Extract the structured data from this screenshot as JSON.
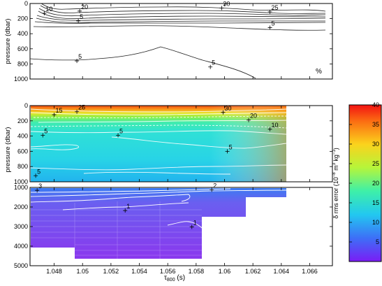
{
  "chart_data": [
    {
      "type": "contour",
      "panel": "top",
      "ylabel": "pressure (dbar)",
      "unit_label": "%",
      "ylim": [
        1000,
        0
      ],
      "xlim": [
        1.0463,
        1.0676
      ],
      "yticks": [
        "0",
        "200",
        "400",
        "600",
        "800",
        "1000"
      ],
      "contour_labels": [
        {
          "text": "10",
          "x": 1.0473,
          "y": 130
        },
        {
          "text": "20",
          "x": 1.0498,
          "y": 100
        },
        {
          "text": "5",
          "x": 1.0497,
          "y": 230
        },
        {
          "text": "30",
          "x": 1.0598,
          "y": 60
        },
        {
          "text": "25",
          "x": 1.0632,
          "y": 110
        },
        {
          "text": "5",
          "x": 1.0632,
          "y": 320
        },
        {
          "text": "5",
          "x": 1.0496,
          "y": 760
        },
        {
          "text": "5",
          "x": 1.059,
          "y": 840
        }
      ]
    },
    {
      "type": "heatmap",
      "panel": "middle",
      "ylabel": "pressure (dbar)",
      "ylim": [
        1000,
        0
      ],
      "yticks": [
        "0",
        "200",
        "400",
        "600",
        "800",
        "1000"
      ],
      "contour_labels": [
        {
          "text": "15",
          "x": 1.048,
          "y": 120
        },
        {
          "text": "25",
          "x": 1.0496,
          "y": 80
        },
        {
          "text": "5",
          "x": 1.0472,
          "y": 390
        },
        {
          "text": "5",
          "x": 1.0525,
          "y": 390
        },
        {
          "text": "30",
          "x": 1.0599,
          "y": 90
        },
        {
          "text": "20",
          "x": 1.0617,
          "y": 190
        },
        {
          "text": "10",
          "x": 1.0632,
          "y": 310
        },
        {
          "text": "5",
          "x": 1.0602,
          "y": 600
        },
        {
          "text": "5",
          "x": 1.0467,
          "y": 920
        }
      ]
    },
    {
      "type": "heatmap",
      "panel": "bottom",
      "xlabel_main": "τ",
      "xlabel_sub": "800",
      "xlabel_unit": " (s)",
      "xlim": [
        1.0463,
        1.0676
      ],
      "ylim": [
        5000,
        1000
      ],
      "yticks": [
        "1000",
        "2000",
        "3000",
        "4000",
        "5000"
      ],
      "xticks": [
        "1.048",
        "1.05",
        "1.052",
        "1.054",
        "1.056",
        "1.058",
        "1.06",
        "1.062",
        "1.064",
        "1.066"
      ],
      "contour_labels": [
        {
          "text": "3",
          "x": 1.0468,
          "y": 1150
        },
        {
          "text": "2",
          "x": 1.0591,
          "y": 1120
        },
        {
          "text": "1",
          "x": 1.053,
          "y": 2180
        },
        {
          "text": "1",
          "x": 1.0577,
          "y": 3020
        }
      ]
    },
    {
      "type": "colorbar",
      "label_main": "δ rms error (10",
      "label_sup": "−8",
      "label_mid": " m",
      "label_sup2": "3",
      "label_end": " kg",
      "label_sup3": "−1",
      "label_close": ")",
      "range": [
        0,
        40
      ],
      "ticks": [
        "5",
        "10",
        "15",
        "20",
        "25",
        "30",
        "35",
        "40"
      ]
    }
  ]
}
